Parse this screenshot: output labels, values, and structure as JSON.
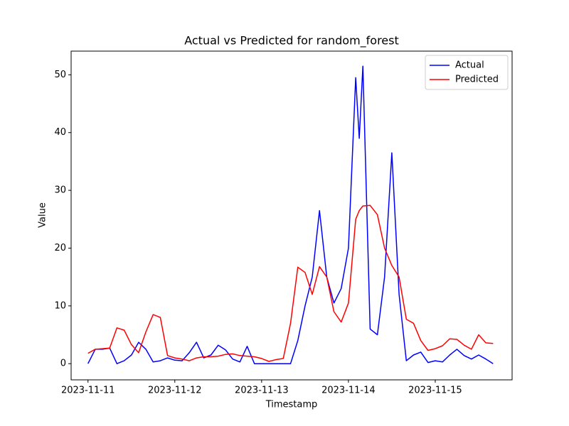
{
  "chart_data": {
    "type": "line",
    "title": "Actual vs Predicted for random_forest",
    "x_label": "Timestamp",
    "y_label": "Value",
    "x": [
      "2023-11-11T00:00",
      "2023-11-11T02:00",
      "2023-11-11T04:00",
      "2023-11-11T06:00",
      "2023-11-11T08:00",
      "2023-11-11T10:00",
      "2023-11-11T12:00",
      "2023-11-11T14:00",
      "2023-11-11T16:00",
      "2023-11-11T18:00",
      "2023-11-11T20:00",
      "2023-11-11T22:00",
      "2023-11-12T00:00",
      "2023-11-12T02:00",
      "2023-11-12T04:00",
      "2023-11-12T06:00",
      "2023-11-12T08:00",
      "2023-11-12T10:00",
      "2023-11-12T12:00",
      "2023-11-12T14:00",
      "2023-11-12T16:00",
      "2023-11-12T18:00",
      "2023-11-12T20:00",
      "2023-11-12T22:00",
      "2023-11-13T00:00",
      "2023-11-13T02:00",
      "2023-11-13T04:00",
      "2023-11-13T06:00",
      "2023-11-13T08:00",
      "2023-11-13T10:00",
      "2023-11-13T12:00",
      "2023-11-13T14:00",
      "2023-11-13T16:00",
      "2023-11-13T18:00",
      "2023-11-13T20:00",
      "2023-11-13T22:00",
      "2023-11-14T00:00",
      "2023-11-14T02:00",
      "2023-11-14T03:00",
      "2023-11-14T04:00",
      "2023-11-14T06:00",
      "2023-11-14T08:00",
      "2023-11-14T10:00",
      "2023-11-14T12:00",
      "2023-11-14T14:00",
      "2023-11-14T16:00",
      "2023-11-14T18:00",
      "2023-11-14T20:00",
      "2023-11-14T22:00",
      "2023-11-15T00:00",
      "2023-11-15T02:00",
      "2023-11-15T04:00",
      "2023-11-15T06:00",
      "2023-11-15T08:00",
      "2023-11-15T10:00",
      "2023-11-15T12:00",
      "2023-11-15T14:00",
      "2023-11-15T16:00"
    ],
    "series": [
      {
        "name": "Actual",
        "color": "#0000ff",
        "values": [
          0,
          2.5,
          2.5,
          2.7,
          0,
          0.5,
          1.5,
          3.7,
          2.5,
          0.3,
          0.5,
          1.0,
          0.6,
          0.5,
          1.9,
          3.7,
          1.0,
          1.5,
          3.2,
          2.4,
          0.8,
          0.3,
          3.0,
          0,
          0,
          0,
          0,
          0,
          0,
          4.0,
          10,
          15,
          26.5,
          15,
          10.5,
          13,
          20,
          49.5,
          39,
          51.5,
          6,
          5,
          15,
          36.5,
          12,
          0.5,
          1.5,
          2,
          0.2,
          0.5,
          0.3,
          1.5,
          2.5,
          1.4,
          0.8,
          1.5,
          0.8,
          0
        ]
      },
      {
        "name": "Predicted",
        "color": "#ff0000",
        "values": [
          1.8,
          2.5,
          2.6,
          2.7,
          6.2,
          5.8,
          3.3,
          1.9,
          5.5,
          8.5,
          8.0,
          1.4,
          1.0,
          0.8,
          0.5,
          1.0,
          1.2,
          1.2,
          1.3,
          1.6,
          1.7,
          1.4,
          1.3,
          1.2,
          0.9,
          0.4,
          0.7,
          0.9,
          7.0,
          16.7,
          15.8,
          12,
          16.8,
          15,
          9,
          7.2,
          10.5,
          25,
          26.5,
          27.3,
          27.4,
          25.8,
          20,
          17,
          15,
          7.7,
          7,
          4,
          2.3,
          2.6,
          3.1,
          4.3,
          4.2,
          3.2,
          2.5,
          5,
          3.6,
          3.5
        ]
      }
    ],
    "xlim": [
      "2023-11-10T19:20",
      "2023-11-15T21:15"
    ],
    "xticks": [
      "2023-11-11",
      "2023-11-12",
      "2023-11-13",
      "2023-11-14",
      "2023-11-15"
    ],
    "ylim": [
      -2.8,
      54.1
    ],
    "yticks": [
      0,
      10,
      20,
      30,
      40,
      50
    ],
    "grid": false,
    "legend": "upper right"
  }
}
